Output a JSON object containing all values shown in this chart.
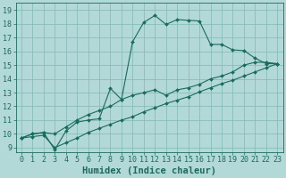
{
  "title": "",
  "xlabel": "Humidex (Indice chaleur)",
  "xlim": [
    -0.5,
    23.5
  ],
  "ylim": [
    8.7,
    19.5
  ],
  "xticks": [
    0,
    1,
    2,
    3,
    4,
    5,
    6,
    7,
    8,
    9,
    10,
    11,
    12,
    13,
    14,
    15,
    16,
    17,
    18,
    19,
    20,
    21,
    22,
    23
  ],
  "yticks": [
    9,
    10,
    11,
    12,
    13,
    14,
    15,
    16,
    17,
    18,
    19
  ],
  "background_color": "#b2d8d8",
  "grid_color": "#80b8b8",
  "line_color": "#1a6b5e",
  "line1_x": [
    0,
    1,
    2,
    3,
    4,
    5,
    6,
    7,
    8,
    9,
    10,
    11,
    12,
    13,
    14,
    15,
    16,
    17,
    18,
    19,
    20,
    21,
    22,
    23
  ],
  "line1_y": [
    9.7,
    10.0,
    10.1,
    8.85,
    10.2,
    10.85,
    11.0,
    11.1,
    13.3,
    12.5,
    16.7,
    18.1,
    18.6,
    17.95,
    18.3,
    18.25,
    18.2,
    16.5,
    16.5,
    16.1,
    16.05,
    15.5,
    15.1,
    15.1
  ],
  "line2_x": [
    0,
    1,
    2,
    3,
    4,
    5,
    6,
    7,
    8,
    9,
    10,
    11,
    12,
    13,
    14,
    15,
    16,
    17,
    18,
    19,
    20,
    21,
    22,
    23
  ],
  "line2_y": [
    9.7,
    10.0,
    10.1,
    10.0,
    10.5,
    11.0,
    11.4,
    11.7,
    12.0,
    12.5,
    12.8,
    13.0,
    13.2,
    12.8,
    13.2,
    13.35,
    13.6,
    14.0,
    14.2,
    14.5,
    15.0,
    15.2,
    15.2,
    15.1
  ],
  "line3_x": [
    0,
    1,
    2,
    3,
    4,
    5,
    6,
    7,
    8,
    9,
    10,
    11,
    12,
    13,
    14,
    15,
    16,
    17,
    18,
    19,
    20,
    21,
    22,
    23
  ],
  "line3_y": [
    9.7,
    9.8,
    9.9,
    9.0,
    9.35,
    9.7,
    10.1,
    10.4,
    10.7,
    11.0,
    11.25,
    11.6,
    11.9,
    12.2,
    12.45,
    12.7,
    13.05,
    13.35,
    13.65,
    13.9,
    14.2,
    14.5,
    14.8,
    15.1
  ],
  "tick_fontsize": 6,
  "label_fontsize": 7.5
}
